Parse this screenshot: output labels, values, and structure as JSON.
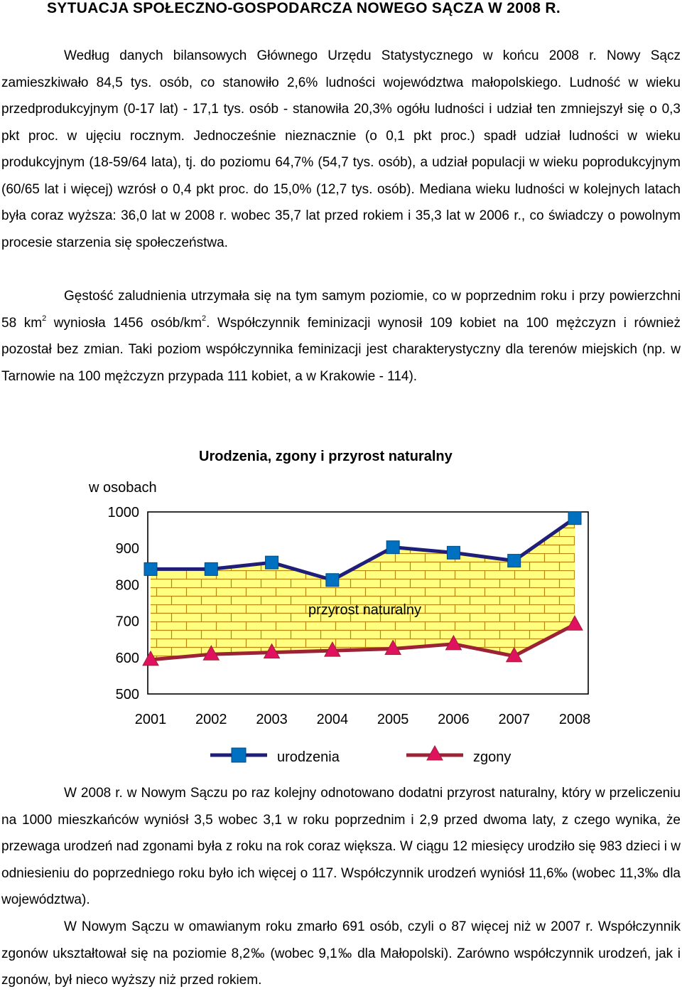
{
  "title": "SYTUACJA SPOŁECZNO-GOSPODARCZA NOWEGO SĄCZA W 2008 R.",
  "para1": "Według danych bilansowych Głównego Urzędu Statystycznego w końcu 2008 r. Nowy Sącz zamieszkiwało 84,5 tys. osób, co stanowiło 2,6% ludności województwa małopolskiego. Ludność w wieku przedprodukcyjnym (0-17 lat) - 17,1 tys. osób - stanowiła 20,3% ogółu ludności i udział ten zmniejszył się o 0,3 pkt proc. w ujęciu rocznym. Jednocześnie nieznacznie (o 0,1 pkt proc.) spadł udział ludności w wieku produkcyjnym (18-59/64 lata), tj. do poziomu 64,7% (54,7 tys. osób), a udział populacji w wieku poprodukcyjnym (60/65 lat i więcej) wzrósł o 0,4 pkt proc. do 15,0% (12,7 tys. osób). Mediana wieku ludności w kolejnych latach była coraz wyższa: 36,0 lat w 2008 r. wobec 35,7 lat przed rokiem i 35,3 lat w 2006 r., co świadczy o powolnym procesie starzenia się społeczeństwa.",
  "para2": {
    "a": "Gęstość zaludnienia utrzymała się na tym samym poziomie, co w poprzednim roku i przy powierzchni 58 km",
    "sup1": "2",
    "b": " wyniosła 1456 osób/km",
    "sup2": "2",
    "c": ". Współczynnik feminizacji wynosił 109 kobiet na 100 mężczyzn i również pozostał bez zmian. Taki poziom współczynnika feminizacji jest charakterystyczny dla terenów miejskich (np. w Tarnowie na 100 mężczyzn przypada 111 kobiet, a w Krakowie - 114)."
  },
  "para3": "W 2008 r. w Nowym Sączu po raz kolejny odnotowano dodatni przyrost naturalny, który w przeliczeniu na 1000 mieszkańców wyniósł 3,5 wobec 3,1 w roku poprzednim i 2,9 przed dwoma laty, z czego wynika, że przewaga urodzeń nad zgonami była z roku na rok coraz większa. W ciągu 12 miesięcy urodziło się 983 dzieci i w odniesieniu do poprzedniego roku było ich więcej o 117. Współczynnik urodzeń wyniósł 11,6‰ (wobec 11,3‰ dla województwa).",
  "para4": "W Nowym Sączu w omawianym roku zmarło 691 osób, czyli o 87 więcej niż w 2007 r. Współczynnik zgonów ukształtował się na poziomie 8,2‰ (wobec 9,1‰ dla Małopolski). Zarówno współczynnik urodzeń, jak i zgonów, był nieco wyższy niż przed rokiem.",
  "chart_data": {
    "type": "line",
    "title": "Urodzenia, zgony i przyrost naturalny",
    "ylabel": "w osobach",
    "xlabel": "",
    "x": [
      "2001",
      "2002",
      "2003",
      "2004",
      "2005",
      "2006",
      "2007",
      "2008"
    ],
    "ylim": [
      500,
      1000
    ],
    "yticks": [
      "500",
      "600",
      "700",
      "800",
      "900",
      "1000"
    ],
    "area_label": "przyrost naturalny",
    "grid": false,
    "legend_position": "bottom",
    "series": [
      {
        "name": "urodzenia",
        "values": [
          843,
          843,
          861,
          813,
          903,
          888,
          866,
          983
        ],
        "color": "#1f1f7a",
        "marker": "#0070c0"
      },
      {
        "name": "zgony",
        "values": [
          594,
          609,
          614,
          619,
          624,
          637,
          604,
          691
        ],
        "color": "#9b2335",
        "marker": "#e0115f"
      }
    ]
  }
}
